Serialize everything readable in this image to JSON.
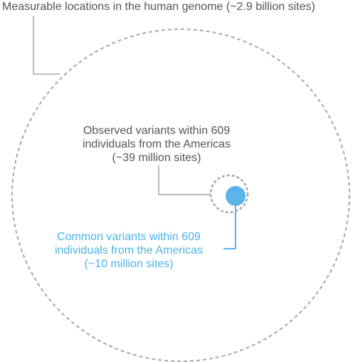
{
  "labels": {
    "genome": "Measurable locations in the human genome (~2.9 billion sites)",
    "observed": {
      "line1": "Observed variants within 609",
      "line2": "individuals from the Americas",
      "line3": "(~39 million sites)"
    },
    "common": {
      "line1": "Common variants within 609",
      "line2": "individuals from the Americas",
      "line3": "(~10 million sites)"
    }
  },
  "colors": {
    "outline_gray": "#999999",
    "text_gray": "#555555",
    "accent_blue": "#4db3e6",
    "fill_blue": "#5ab4ea"
  }
}
